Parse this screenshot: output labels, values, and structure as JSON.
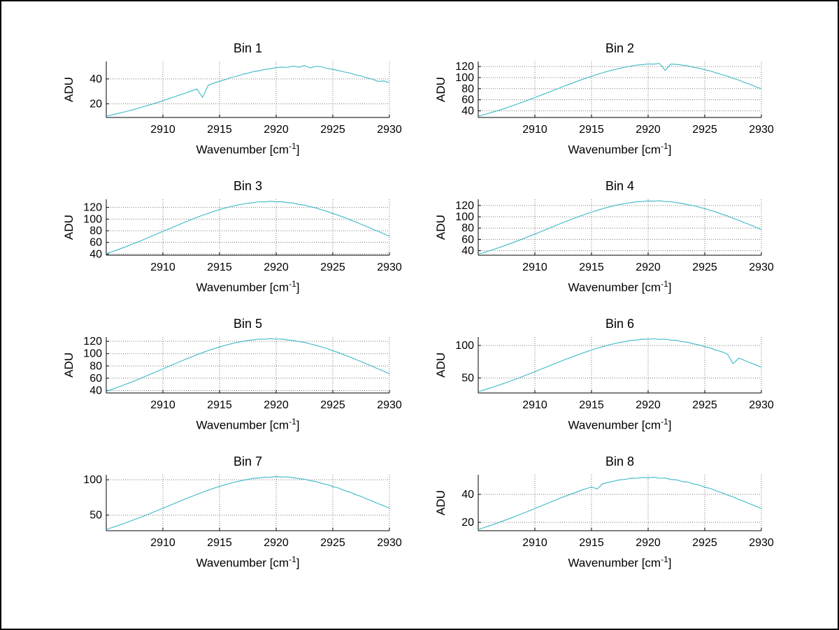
{
  "figure": {
    "background": "#ffffff",
    "border_color": "#000000",
    "line_color": "#3db8c7",
    "grid_color": "#7a7a7a",
    "axis_color": "#000000",
    "ylabel": "ADU",
    "xlabel": {
      "prefix": "Wavenumber [cm",
      "sup": "-1",
      "suffix": "]"
    }
  },
  "chart_data": [
    {
      "type": "line",
      "title": "Bin 1",
      "xlabel": "Wavenumber [cm^-1]",
      "ylabel": "ADU",
      "xlim": [
        2905,
        2930
      ],
      "ylim": [
        9,
        54
      ],
      "xticks": [
        2910,
        2915,
        2920,
        2925,
        2930
      ],
      "yticks": [
        20,
        40
      ],
      "grid": true,
      "x_start": 2905,
      "x_step": 0.5,
      "values": [
        10.1,
        11.1,
        12.2,
        13.2,
        14.4,
        15.6,
        16.9,
        18.3,
        19.6,
        21.0,
        22.5,
        24.1,
        25.6,
        27.1,
        28.7,
        30.2,
        31.9,
        25.2,
        35.0,
        36.7,
        38.1,
        39.5,
        41.1,
        42.2,
        43.6,
        44.6,
        45.9,
        46.6,
        47.7,
        48.2,
        49.1,
        49.6,
        49.2,
        50.3,
        49.5,
        50.8,
        48.8,
        50.1,
        49.8,
        48.4,
        47.7,
        46.8,
        45.6,
        44.8,
        43.3,
        42.4,
        40.9,
        39.7,
        38.0,
        38.4,
        36.9
      ]
    },
    {
      "type": "line",
      "title": "Bin 2",
      "xlabel": "Wavenumber [cm^-1]",
      "ylabel": "ADU",
      "xlim": [
        2905,
        2930
      ],
      "ylim": [
        28,
        129
      ],
      "xticks": [
        2910,
        2915,
        2920,
        2925,
        2930
      ],
      "yticks": [
        40,
        60,
        80,
        100,
        120
      ],
      "grid": true,
      "x_start": 2905,
      "x_step": 0.5,
      "values": [
        30.3,
        33.0,
        35.9,
        39.0,
        42.2,
        45.5,
        49.0,
        52.6,
        56.3,
        60.1,
        64.0,
        67.9,
        71.8,
        75.8,
        79.8,
        83.8,
        87.7,
        91.5,
        95.3,
        98.9,
        102.4,
        105.7,
        108.8,
        111.7,
        114.4,
        116.8,
        118.9,
        120.8,
        122.7,
        123.4,
        124.7,
        124.3,
        125.6,
        113.0,
        124.5,
        123.8,
        122.6,
        121.2,
        118.6,
        117.0,
        114.2,
        111.9,
        108.6,
        105.5,
        102.6,
        98.7,
        95.5,
        91.3,
        87.9,
        83.6,
        79.8
      ]
    },
    {
      "type": "line",
      "title": "Bin 3",
      "xlabel": "Wavenumber [cm^-1]",
      "ylabel": "ADU",
      "xlim": [
        2905,
        2930
      ],
      "ylim": [
        38,
        134
      ],
      "xticks": [
        2910,
        2915,
        2920,
        2925,
        2930
      ],
      "yticks": [
        40,
        60,
        80,
        100,
        120
      ],
      "grid": true,
      "x_start": 2905,
      "x_step": 0.5,
      "values": [
        40.6,
        43.9,
        47.4,
        51.0,
        54.7,
        58.5,
        62.5,
        66.5,
        70.6,
        74.7,
        78.9,
        83.0,
        87.1,
        91.2,
        95.2,
        99.1,
        102.9,
        106.5,
        109.9,
        113.2,
        116.2,
        119.0,
        121.5,
        123.7,
        125.6,
        127.3,
        128.2,
        129.8,
        129.5,
        130.6,
        129.6,
        129.9,
        128.1,
        127.6,
        125.3,
        124.0,
        121.3,
        119.2,
        116.0,
        113.3,
        109.8,
        106.4,
        103.0,
        99.0,
        95.3,
        91.1,
        87.2,
        82.9,
        78.9,
        74.8,
        70.6
      ]
    },
    {
      "type": "line",
      "title": "Bin 4",
      "xlabel": "Wavenumber [cm^-1]",
      "ylabel": "ADU",
      "xlim": [
        2905,
        2930
      ],
      "ylim": [
        32,
        131
      ],
      "xticks": [
        2910,
        2915,
        2920,
        2925,
        2930
      ],
      "yticks": [
        40,
        60,
        80,
        100,
        120
      ],
      "grid": true,
      "x_start": 2905,
      "x_step": 0.5,
      "values": [
        33.8,
        36.8,
        39.9,
        43.2,
        46.6,
        50.2,
        53.9,
        57.6,
        61.5,
        65.5,
        69.5,
        73.5,
        77.6,
        81.7,
        85.8,
        89.8,
        93.7,
        97.6,
        101.3,
        104.9,
        108.2,
        111.4,
        114.4,
        117.1,
        119.6,
        121.8,
        123.6,
        125.2,
        126.8,
        127.0,
        128.2,
        127.6,
        128.4,
        127.1,
        126.7,
        125.0,
        123.8,
        121.5,
        119.8,
        116.9,
        114.6,
        111.2,
        108.4,
        104.7,
        101.5,
        97.4,
        93.9,
        89.6,
        86.0,
        81.5,
        77.6
      ]
    },
    {
      "type": "line",
      "title": "Bin 5",
      "xlabel": "Wavenumber [cm^-1]",
      "ylabel": "ADU",
      "xlim": [
        2905,
        2930
      ],
      "ylim": [
        36,
        127
      ],
      "xticks": [
        2910,
        2915,
        2920,
        2925,
        2930
      ],
      "yticks": [
        40,
        60,
        80,
        100,
        120
      ],
      "grid": true,
      "x_start": 2905,
      "x_step": 0.5,
      "values": [
        38.7,
        41.9,
        45.2,
        48.6,
        52.2,
        55.8,
        59.6,
        63.4,
        67.3,
        71.3,
        75.2,
        79.2,
        83.1,
        87.0,
        90.8,
        94.5,
        98.1,
        101.6,
        104.9,
        108.0,
        110.8,
        113.5,
        115.9,
        118.0,
        119.8,
        121.5,
        122.3,
        123.6,
        123.5,
        124.4,
        123.6,
        123.7,
        122.2,
        121.5,
        119.6,
        118.2,
        115.7,
        113.6,
        110.6,
        108.2,
        104.7,
        101.8,
        97.9,
        94.7,
        90.6,
        87.2,
        82.9,
        79.3,
        75.1,
        71.4,
        67.3
      ]
    },
    {
      "type": "line",
      "title": "Bin 6",
      "xlabel": "Wavenumber [cm^-1]",
      "ylabel": "ADU",
      "xlim": [
        2905,
        2930
      ],
      "ylim": [
        27,
        113
      ],
      "xticks": [
        2910,
        2915,
        2920,
        2925,
        2930
      ],
      "yticks": [
        50,
        100
      ],
      "grid": true,
      "x_start": 2905,
      "x_step": 0.5,
      "values": [
        29.0,
        31.6,
        34.3,
        37.1,
        40.1,
        43.1,
        46.3,
        49.5,
        52.9,
        56.3,
        59.7,
        63.2,
        66.7,
        70.2,
        73.7,
        77.2,
        80.6,
        83.8,
        87.1,
        90.1,
        93.0,
        95.8,
        98.3,
        100.7,
        102.8,
        104.6,
        106.2,
        107.8,
        108.4,
        109.7,
        109.6,
        110.3,
        109.5,
        109.8,
        108.3,
        107.8,
        105.9,
        104.8,
        102.6,
        100.9,
        98.1,
        96.0,
        92.8,
        90.3,
        86.9,
        72.0,
        80.4,
        77.3,
        73.6,
        70.3,
        66.7
      ]
    },
    {
      "type": "line",
      "title": "Bin 7",
      "xlabel": "Wavenumber [cm^-1]",
      "ylabel": "",
      "xlim": [
        2905,
        2930
      ],
      "ylim": [
        28,
        107
      ],
      "xticks": [
        2910,
        2915,
        2920,
        2925,
        2930
      ],
      "yticks": [
        50,
        100
      ],
      "grid": true,
      "x_start": 2905,
      "x_step": 0.5,
      "values": [
        29.9,
        32.4,
        35.1,
        37.9,
        40.8,
        43.8,
        46.8,
        50.0,
        53.2,
        56.5,
        59.8,
        63.1,
        66.4,
        69.7,
        73.0,
        76.2,
        79.3,
        82.3,
        85.2,
        88.0,
        90.6,
        93.0,
        95.2,
        97.2,
        98.9,
        100.5,
        101.9,
        102.5,
        103.6,
        103.7,
        104.4,
        103.7,
        104.0,
        102.9,
        101.5,
        100.7,
        98.7,
        97.4,
        95.0,
        93.2,
        90.4,
        88.2,
        85.0,
        82.5,
        79.1,
        76.4,
        72.8,
        69.9,
        66.2,
        63.3,
        59.8
      ]
    },
    {
      "type": "line",
      "title": "Bin 8",
      "xlabel": "Wavenumber [cm^-1]",
      "ylabel": "ADU",
      "xlim": [
        2905,
        2930
      ],
      "ylim": [
        14,
        54
      ],
      "xticks": [
        2910,
        2915,
        2920,
        2925,
        2930
      ],
      "yticks": [
        20,
        40
      ],
      "grid": true,
      "x_start": 2905,
      "x_step": 0.5,
      "values": [
        15.0,
        16.2,
        17.6,
        18.9,
        20.4,
        21.9,
        23.4,
        25.0,
        26.6,
        28.2,
        29.9,
        31.5,
        33.2,
        34.8,
        36.5,
        38.1,
        39.6,
        41.1,
        42.6,
        44.0,
        45.3,
        43.8,
        47.6,
        48.6,
        49.5,
        50.4,
        50.7,
        51.6,
        51.5,
        52.1,
        51.8,
        52.3,
        51.5,
        51.7,
        50.6,
        50.4,
        49.2,
        48.8,
        47.4,
        46.7,
        45.1,
        44.2,
        42.5,
        41.2,
        39.5,
        38.2,
        36.4,
        34.9,
        33.1,
        31.6,
        29.9
      ]
    }
  ]
}
